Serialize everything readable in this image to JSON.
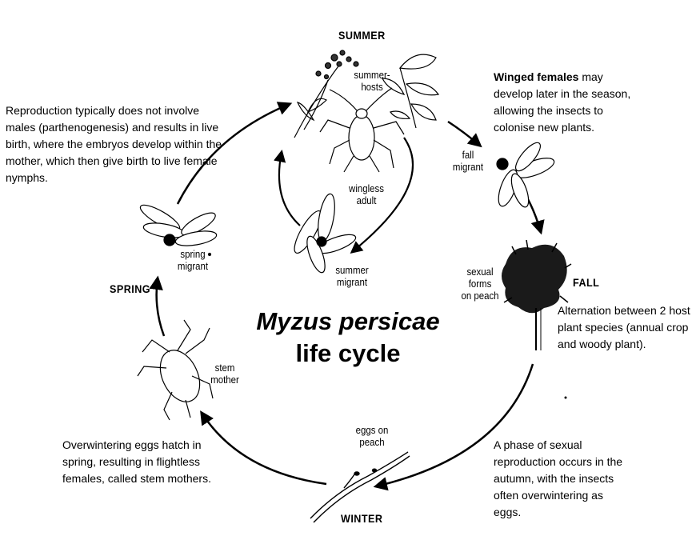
{
  "title": {
    "line1": "Myzus persicae",
    "line2": "life cycle"
  },
  "seasons": {
    "summer": "SUMMER",
    "fall": "FALL",
    "winter": "WINTER",
    "spring": "SPRING"
  },
  "labels": {
    "summer_hosts_1": "summer-",
    "summer_hosts_2": "hosts",
    "wingless_adult_1": "wingless",
    "wingless_adult_2": "adult",
    "summer_migrant_1": "summer",
    "summer_migrant_2": "migrant",
    "fall_migrant_1": "fall",
    "fall_migrant_2": "migrant",
    "sexual_forms_1": "sexual",
    "sexual_forms_2": "forms",
    "sexual_forms_3": "on peach",
    "eggs_on_peach_1": "eggs on",
    "eggs_on_peach_2": "peach",
    "stem_mother_1": "stem",
    "stem_mother_2": "mother",
    "spring_migrant_1": "spring",
    "spring_migrant_2": "migrant"
  },
  "notes": {
    "reproduction": "Reproduction typically does not involve males (parthenogenesis) and results in live birth, where  the embryos develop within the mother, which then give birth to live female nymphs.",
    "winged_bold": "Winged females",
    "winged_rest": " may develop later in the season, allowing the insects to colonise new plants.",
    "alternation": "Alternation between 2 host plant species (annual crop and woody plant).",
    "sexual_phase": "A phase of sexual reproduction occurs in the autumn, with the insects often overwintering as eggs.",
    "overwintering": "Overwintering eggs hatch in spring, resulting in flightless females, called stem mothers."
  },
  "colors": {
    "ink": "#000000",
    "background": "#ffffff"
  }
}
